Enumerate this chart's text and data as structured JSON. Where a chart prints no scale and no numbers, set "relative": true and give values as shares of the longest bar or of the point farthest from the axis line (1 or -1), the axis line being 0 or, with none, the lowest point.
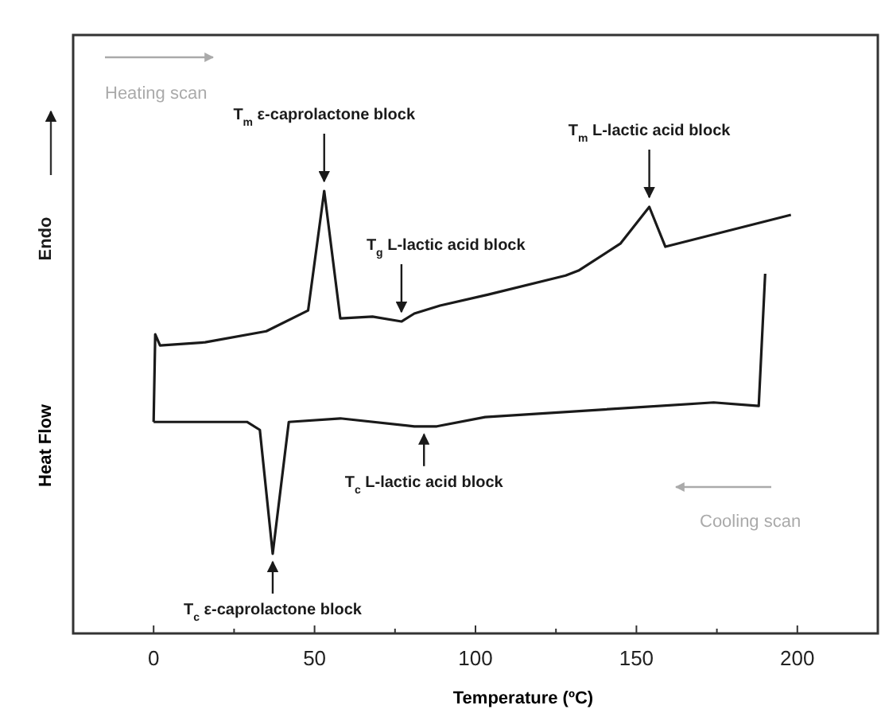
{
  "chart_data": {
    "type": "line",
    "relative": true,
    "xlabel": "Temperature (ºC)",
    "ylabel": "Heat Flow",
    "xlim": [
      -25,
      225
    ],
    "xticks": [
      0,
      {
        "value": 25,
        "label": null
      },
      50,
      {
        "value": 75,
        "label": null
      },
      100,
      {
        "value": 125,
        "label": null
      },
      150,
      {
        "value": 175,
        "label": null
      },
      200
    ],
    "grid": false,
    "marker": "none",
    "line_style": "solid",
    "series": [
      {
        "color": "#1a1a1a",
        "x": [
          0,
          0.5,
          2,
          16,
          35,
          48,
          53,
          58,
          68,
          77,
          81,
          89,
          104,
          128,
          132,
          145,
          154,
          159,
          198
        ],
        "values": [
          0.478,
          0.676,
          0.651,
          0.658,
          0.683,
          0.73,
          1,
          0.712,
          0.716,
          0.705,
          0.723,
          0.741,
          0.766,
          0.809,
          0.82,
          0.881,
          0.964,
          0.874,
          0.946
        ]
      },
      {
        "color": "#1a1a1a",
        "x": [
          190,
          188,
          174,
          103,
          88,
          81,
          58,
          42,
          37,
          33,
          29,
          0
        ],
        "values": [
          0.813,
          0.514,
          0.522,
          0.489,
          0.468,
          0.468,
          0.486,
          0.478,
          0.18,
          0.46,
          0.478,
          0.478
        ]
      }
    ],
    "annotations": [
      {
        "text": "T$_{m}$ ε-caprolactone block",
        "x": 53,
        "y": 1
      },
      {
        "text": "T$_{g}$ L-lactic acid block",
        "x": 77,
        "y": 0.705
      },
      {
        "text": "T$_{m}$ L-lactic acid block",
        "x": 154,
        "y": 0.964
      },
      {
        "text": "T$_{c}$ L-lactic acid block",
        "x": 84,
        "y": 0.468
      },
      {
        "text": "T$_{c}$ ε-caprolactone block",
        "x": 37,
        "y": 0.18
      },
      "Heating scan",
      "Cooling scan",
      "Endo"
    ]
  }
}
